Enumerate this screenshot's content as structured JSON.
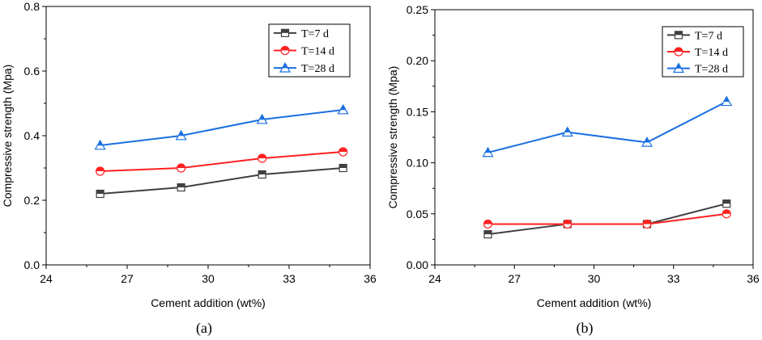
{
  "chart_data": [
    {
      "type": "line",
      "caption": "(a)",
      "xlabel": "Cement addition (wt%)",
      "ylabel": "Compressive strength (Mpa)",
      "xlim": [
        24,
        36
      ],
      "ylim": [
        0.0,
        0.8
      ],
      "xticks": [
        24,
        27,
        30,
        33,
        36
      ],
      "xtick_labels": [
        "24",
        "27",
        "30",
        "33",
        "36"
      ],
      "yticks": [
        0.0,
        0.2,
        0.4,
        0.6,
        0.8
      ],
      "ytick_labels": [
        "0.0",
        "0.2",
        "0.4",
        "0.6",
        "0.8"
      ],
      "legend_position": "top-right",
      "x": [
        26,
        29,
        32,
        35
      ],
      "series": [
        {
          "name": "T=7 d",
          "values": [
            0.22,
            0.24,
            0.28,
            0.3
          ],
          "color": "#404040",
          "marker": "square"
        },
        {
          "name": "T=14 d",
          "values": [
            0.29,
            0.3,
            0.33,
            0.35
          ],
          "color": "#ff2020",
          "marker": "circle"
        },
        {
          "name": "T=28 d",
          "values": [
            0.37,
            0.4,
            0.45,
            0.48
          ],
          "color": "#1a6fe0",
          "marker": "triangle"
        }
      ]
    },
    {
      "type": "line",
      "caption": "(b)",
      "xlabel": "Cement addition (wt%)",
      "ylabel": "Compressive strength (Mpa)",
      "xlim": [
        24,
        36
      ],
      "ylim": [
        0.0,
        0.25
      ],
      "xticks": [
        24,
        27,
        30,
        33,
        36
      ],
      "xtick_labels": [
        "24",
        "27",
        "30",
        "33",
        "36"
      ],
      "yticks": [
        0.0,
        0.05,
        0.1,
        0.15,
        0.2,
        0.25
      ],
      "ytick_labels": [
        "0.00",
        "0.05",
        "0.10",
        "0.15",
        "0.20",
        "0.25"
      ],
      "legend_position": "top-right",
      "x": [
        26,
        29,
        32,
        35
      ],
      "series": [
        {
          "name": "T=7 d",
          "values": [
            0.03,
            0.04,
            0.04,
            0.06
          ],
          "color": "#404040",
          "marker": "square"
        },
        {
          "name": "T=14 d",
          "values": [
            0.04,
            0.04,
            0.04,
            0.05
          ],
          "color": "#ff2020",
          "marker": "circle"
        },
        {
          "name": "T=28 d",
          "values": [
            0.11,
            0.13,
            0.12,
            0.16
          ],
          "color": "#1a6fe0",
          "marker": "triangle"
        }
      ]
    }
  ]
}
